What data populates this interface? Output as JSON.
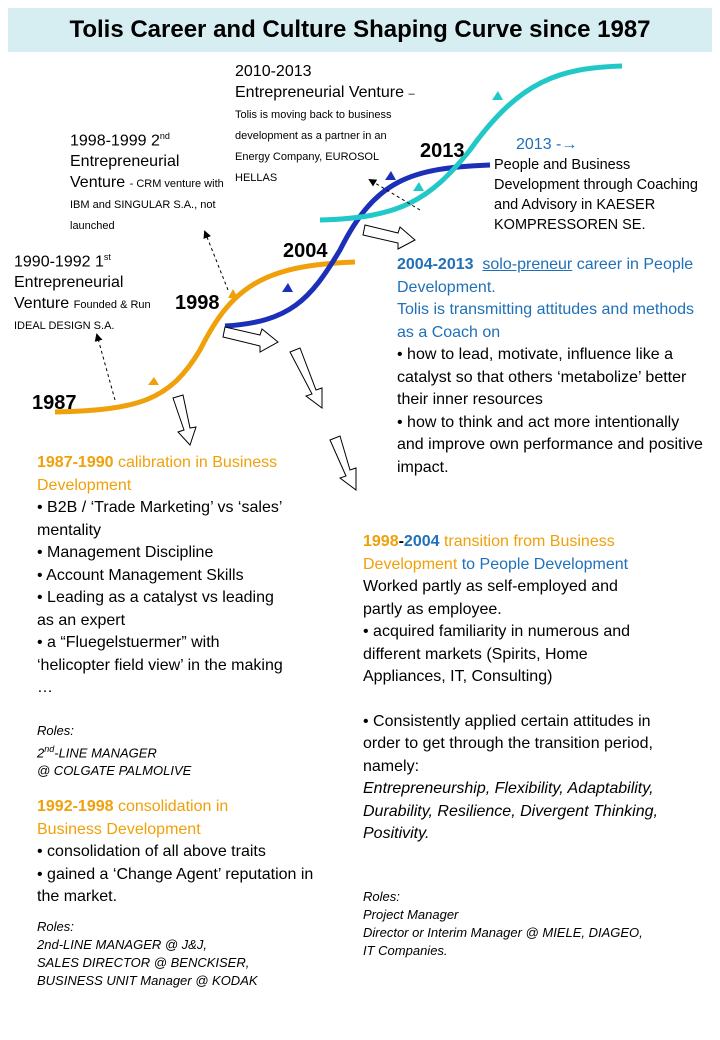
{
  "title": "Tolis Career and Culture Shaping Curve since 1987",
  "years": [
    "1987",
    "1998",
    "2004",
    "2013"
  ],
  "ventures": [
    {
      "period": "1990-1992 1",
      "sup": "st",
      "name": "Entrepreneurial Venture",
      "detail": "Founded & Run IDEAL DESIGN S.A."
    },
    {
      "period": "1998-1999 2",
      "sup": "nd",
      "name": "Entrepreneurial Venture",
      "detail": "- CRM venture with IBM and SINGULAR S.A., not launched"
    },
    {
      "period": "2010-2013",
      "name": "Entrepreneurial Venture",
      "detail": "– Tolis is moving back to business development as a partner in an Energy Company, EUROSOL HELLAS"
    }
  ],
  "current": {
    "heading": "2013 -→",
    "text": "People and Business Development through Coaching and Advisory in KAESER KOMPRESSOREN SE."
  },
  "phase_2004_2013": {
    "years": "2004-2013",
    "keyword": "solo-preneur",
    "heading_rest": "career in People Development.",
    "intro": "Tolis is transmitting attitudes and methods as a Coach on",
    "bullets": [
      "• how to lead, motivate, influence like a catalyst so that others ‘metabolize’ better their inner resources",
      "• how to think and act more intentionally and improve own performance and positive impact."
    ]
  },
  "phase_1987_1990": {
    "years": "1987-1990",
    "heading_rest": "calibration in Business Development",
    "bullets": [
      "• B2B / ‘Trade Marketing’ vs ‘sales’ mentality",
      "• Management Discipline",
      "• Account Management Skills",
      "• Leading as a catalyst vs leading as an expert",
      "• a “Fluegelstuermer” with ‘helicopter field view’ in the making …"
    ],
    "roles_label": "Roles:",
    "roles": [
      "2",
      "nd",
      "-LINE MANAGER",
      "@ COLGATE PALMOLIVE"
    ]
  },
  "phase_1992_1998": {
    "years": "1992-1998",
    "heading_rest": "consolidation in Business Development",
    "bullets": [
      "• consolidation of all above traits",
      "• gained a ‘Change Agent’ reputation in the market."
    ],
    "roles_label": "Roles:",
    "roles": [
      "2nd-LINE MANAGER @ J&J,",
      "SALES DIRECTOR @ BENCKISER,",
      "BUSINESS UNIT Manager  @ KODAK"
    ]
  },
  "phase_1998_2004": {
    "year_start": "1998",
    "dash": "-",
    "year_end": "2004",
    "transition": "transition from",
    "from": "Business Development",
    "to": "to People Development",
    "body": "Worked partly as self-employed and partly as employee.",
    "bullets": [
      "• acquired  familiarity in numerous and different markets (Spirits, Home Appliances, IT, Consulting)",
      "• Consistently applied certain attitudes in order to get through the transition period, namely:"
    ],
    "attitudes": "Entrepreneurship, Flexibility, Adaptability, Durability, Resilience, Divergent Thinking, Positivity.",
    "roles_label": "Roles:",
    "roles": [
      "Project Manager",
      "Director  or Interim Manager @ MIELE, DIAGEO, IT Companies."
    ]
  }
}
